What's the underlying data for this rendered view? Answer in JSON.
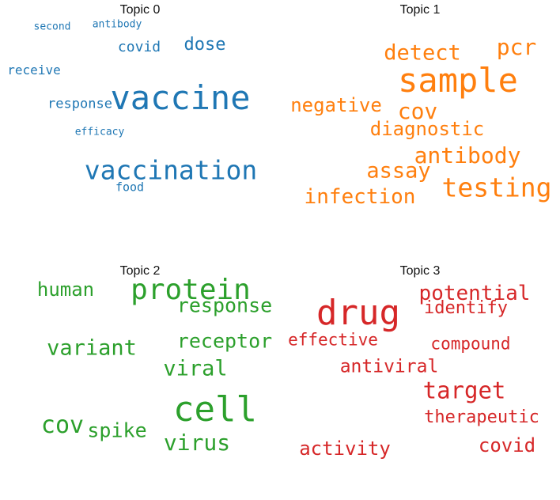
{
  "topics": [
    {
      "title": "Topic 0",
      "color": "#1f77b4",
      "words": [
        {
          "text": "vaccine"
        },
        {
          "text": "vaccination"
        },
        {
          "text": "dose"
        },
        {
          "text": "covid"
        },
        {
          "text": "response"
        },
        {
          "text": "receive"
        },
        {
          "text": "second"
        },
        {
          "text": "antibody"
        },
        {
          "text": "efficacy"
        },
        {
          "text": "food"
        }
      ]
    },
    {
      "title": "Topic 1",
      "color": "#ff7f0e",
      "words": [
        {
          "text": "sample"
        },
        {
          "text": "testing"
        },
        {
          "text": "cov"
        },
        {
          "text": "detect"
        },
        {
          "text": "pcr"
        },
        {
          "text": "negative"
        },
        {
          "text": "diagnostic"
        },
        {
          "text": "antibody"
        },
        {
          "text": "assay"
        },
        {
          "text": "infection"
        }
      ]
    },
    {
      "title": "Topic 2",
      "color": "#2ca02c",
      "words": [
        {
          "text": "cell"
        },
        {
          "text": "protein"
        },
        {
          "text": "human"
        },
        {
          "text": "response"
        },
        {
          "text": "variant"
        },
        {
          "text": "receptor"
        },
        {
          "text": "viral"
        },
        {
          "text": "cov"
        },
        {
          "text": "spike"
        },
        {
          "text": "virus"
        }
      ]
    },
    {
      "title": "Topic 3",
      "color": "#d62728",
      "words": [
        {
          "text": "drug"
        },
        {
          "text": "potential"
        },
        {
          "text": "identify"
        },
        {
          "text": "effective"
        },
        {
          "text": "compound"
        },
        {
          "text": "antiviral"
        },
        {
          "text": "target"
        },
        {
          "text": "therapeutic"
        },
        {
          "text": "activity"
        },
        {
          "text": "covid"
        }
      ]
    }
  ]
}
